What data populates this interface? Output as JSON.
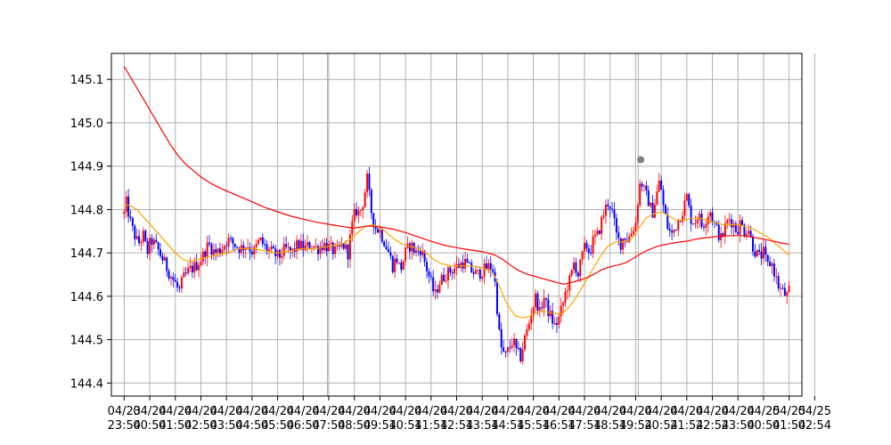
{
  "chart_data": {
    "type": "candlestick",
    "title": "",
    "xlabel": "",
    "ylabel": "",
    "grid": true,
    "legend": "none",
    "xlim": [
      -0.5,
      26.5
    ],
    "ylim": [
      144.37,
      145.16
    ],
    "y_ticks": [
      144.4,
      144.5,
      144.6,
      144.7,
      144.8,
      144.9,
      145.0,
      145.1
    ],
    "x_ticks": [
      {
        "x": 0,
        "line1": "04/23",
        "line2": "23:54"
      },
      {
        "x": 1,
        "line1": "04/24",
        "line2": "00:54"
      },
      {
        "x": 2,
        "line1": "04/24",
        "line2": "01:54"
      },
      {
        "x": 3,
        "line1": "04/24",
        "line2": "02:54"
      },
      {
        "x": 4,
        "line1": "04/24",
        "line2": "03:54"
      },
      {
        "x": 5,
        "line1": "04/24",
        "line2": "04:54"
      },
      {
        "x": 6,
        "line1": "04/24",
        "line2": "05:54"
      },
      {
        "x": 7,
        "line1": "04/24",
        "line2": "06:54"
      },
      {
        "x": 8,
        "line1": "04/24",
        "line2": "07:54"
      },
      {
        "x": 9,
        "line1": "04/24",
        "line2": "08:54"
      },
      {
        "x": 10,
        "line1": "04/24",
        "line2": "09:54"
      },
      {
        "x": 11,
        "line1": "04/24",
        "line2": "10:54"
      },
      {
        "x": 12,
        "line1": "04/24",
        "line2": "11:54"
      },
      {
        "x": 13,
        "line1": "04/24",
        "line2": "12:54"
      },
      {
        "x": 14,
        "line1": "04/24",
        "line2": "13:54"
      },
      {
        "x": 15,
        "line1": "04/24",
        "line2": "14:54"
      },
      {
        "x": 16,
        "line1": "04/24",
        "line2": "15:54"
      },
      {
        "x": 17,
        "line1": "04/24",
        "line2": "16:54"
      },
      {
        "x": 18,
        "line1": "04/24",
        "line2": "17:54"
      },
      {
        "x": 19,
        "line1": "04/24",
        "line2": "18:54"
      },
      {
        "x": 20,
        "line1": "04/24",
        "line2": "19:54"
      },
      {
        "x": 21,
        "line1": "04/24",
        "line2": "20:54"
      },
      {
        "x": 22,
        "line1": "04/24",
        "line2": "21:54"
      },
      {
        "x": 23,
        "line1": "04/24",
        "line2": "22:54"
      },
      {
        "x": 24,
        "line1": "04/24",
        "line2": "23:54"
      },
      {
        "x": 25,
        "line1": "04/25",
        "line2": "00:54"
      },
      {
        "x": 26,
        "line1": "04/25",
        "line2": "01:54"
      },
      {
        "x": 27,
        "line1": "04/25",
        "line2": "02:54"
      }
    ],
    "vertical_markers": [
      {
        "x": 7.95,
        "color": "#aaaaaa"
      },
      {
        "x": 20.1,
        "color": "#aaaaaa"
      }
    ],
    "marker_points": [
      {
        "x": 20.2,
        "y": 144.915,
        "color": "#808080"
      }
    ],
    "candle_colors": {
      "up": "#ff0000",
      "down": "#0000ff"
    },
    "price_path": [
      [
        0.0,
        144.79
      ],
      [
        0.1,
        144.82
      ],
      [
        0.2,
        144.78
      ],
      [
        0.35,
        144.75
      ],
      [
        0.55,
        144.72
      ],
      [
        0.75,
        144.74
      ],
      [
        0.9,
        144.7
      ],
      [
        1.05,
        144.73
      ],
      [
        1.3,
        144.71
      ],
      [
        1.55,
        144.68
      ],
      [
        1.8,
        144.65
      ],
      [
        2.0,
        144.63
      ],
      [
        2.15,
        144.61
      ],
      [
        2.3,
        144.64
      ],
      [
        2.55,
        144.66
      ],
      [
        2.8,
        144.67
      ],
      [
        3.05,
        144.69
      ],
      [
        3.3,
        144.72
      ],
      [
        3.55,
        144.7
      ],
      [
        3.8,
        144.71
      ],
      [
        4.05,
        144.73
      ],
      [
        4.3,
        144.72
      ],
      [
        4.55,
        144.71
      ],
      [
        4.8,
        144.72
      ],
      [
        5.05,
        144.7
      ],
      [
        5.3,
        144.73
      ],
      [
        5.55,
        144.71
      ],
      [
        5.8,
        144.7
      ],
      [
        6.05,
        144.69
      ],
      [
        6.3,
        144.71
      ],
      [
        6.55,
        144.7
      ],
      [
        6.8,
        144.72
      ],
      [
        7.05,
        144.71
      ],
      [
        7.3,
        144.72
      ],
      [
        7.55,
        144.71
      ],
      [
        7.8,
        144.72
      ],
      [
        8.05,
        144.71
      ],
      [
        8.3,
        144.7
      ],
      [
        8.55,
        144.72
      ],
      [
        8.75,
        144.7
      ],
      [
        8.9,
        144.76
      ],
      [
        9.05,
        144.8
      ],
      [
        9.2,
        144.79
      ],
      [
        9.35,
        144.82
      ],
      [
        9.5,
        144.87
      ],
      [
        9.65,
        144.8
      ],
      [
        9.8,
        144.76
      ],
      [
        10.0,
        144.75
      ],
      [
        10.15,
        144.73
      ],
      [
        10.35,
        144.7
      ],
      [
        10.5,
        144.67
      ],
      [
        10.65,
        144.69
      ],
      [
        10.8,
        144.66
      ],
      [
        11.0,
        144.7
      ],
      [
        11.2,
        144.72
      ],
      [
        11.4,
        144.7
      ],
      [
        11.6,
        144.71
      ],
      [
        11.75,
        144.68
      ],
      [
        11.85,
        144.66
      ],
      [
        12.0,
        144.63
      ],
      [
        12.15,
        144.6
      ],
      [
        12.3,
        144.63
      ],
      [
        12.55,
        144.65
      ],
      [
        12.8,
        144.66
      ],
      [
        13.05,
        144.67
      ],
      [
        13.3,
        144.68
      ],
      [
        13.55,
        144.66
      ],
      [
        13.8,
        144.65
      ],
      [
        14.05,
        144.66
      ],
      [
        14.3,
        144.67
      ],
      [
        14.45,
        144.66
      ],
      [
        14.55,
        144.6
      ],
      [
        14.65,
        144.52
      ],
      [
        14.75,
        144.48
      ],
      [
        14.9,
        144.46
      ],
      [
        15.05,
        144.48
      ],
      [
        15.2,
        144.5
      ],
      [
        15.35,
        144.47
      ],
      [
        15.5,
        144.46
      ],
      [
        15.65,
        144.5
      ],
      [
        15.8,
        144.53
      ],
      [
        15.95,
        144.57
      ],
      [
        16.1,
        144.6
      ],
      [
        16.25,
        144.56
      ],
      [
        16.4,
        144.6
      ],
      [
        16.55,
        144.57
      ],
      [
        16.7,
        144.55
      ],
      [
        16.85,
        144.53
      ],
      [
        17.0,
        144.55
      ],
      [
        17.15,
        144.58
      ],
      [
        17.3,
        144.62
      ],
      [
        17.45,
        144.64
      ],
      [
        17.6,
        144.68
      ],
      [
        17.75,
        144.65
      ],
      [
        17.9,
        144.69
      ],
      [
        18.05,
        144.72
      ],
      [
        18.2,
        144.7
      ],
      [
        18.35,
        144.73
      ],
      [
        18.5,
        144.74
      ],
      [
        18.65,
        144.77
      ],
      [
        18.8,
        144.8
      ],
      [
        18.95,
        144.82
      ],
      [
        19.1,
        144.79
      ],
      [
        19.25,
        144.74
      ],
      [
        19.4,
        144.72
      ],
      [
        19.55,
        144.74
      ],
      [
        19.7,
        144.73
      ],
      [
        19.85,
        144.75
      ],
      [
        20.0,
        144.77
      ],
      [
        20.1,
        144.83
      ],
      [
        20.2,
        144.87
      ],
      [
        20.35,
        144.84
      ],
      [
        20.5,
        144.82
      ],
      [
        20.65,
        144.79
      ],
      [
        20.8,
        144.83
      ],
      [
        20.95,
        144.87
      ],
      [
        21.1,
        144.8
      ],
      [
        21.25,
        144.76
      ],
      [
        21.4,
        144.74
      ],
      [
        21.55,
        144.76
      ],
      [
        21.7,
        144.78
      ],
      [
        21.85,
        144.8
      ],
      [
        22.0,
        144.83
      ],
      [
        22.15,
        144.78
      ],
      [
        22.3,
        144.77
      ],
      [
        22.45,
        144.79
      ],
      [
        22.6,
        144.76
      ],
      [
        22.75,
        144.78
      ],
      [
        22.9,
        144.8
      ],
      [
        23.05,
        144.77
      ],
      [
        23.2,
        144.75
      ],
      [
        23.35,
        144.73
      ],
      [
        23.5,
        144.76
      ],
      [
        23.65,
        144.78
      ],
      [
        23.8,
        144.77
      ],
      [
        23.95,
        144.75
      ],
      [
        24.1,
        144.77
      ],
      [
        24.25,
        144.75
      ],
      [
        24.4,
        144.76
      ],
      [
        24.55,
        144.72
      ],
      [
        24.7,
        144.7
      ],
      [
        24.85,
        144.69
      ],
      [
        25.0,
        144.7
      ],
      [
        25.15,
        144.67
      ],
      [
        25.3,
        144.68
      ],
      [
        25.45,
        144.65
      ],
      [
        25.6,
        144.62
      ],
      [
        25.75,
        144.61
      ],
      [
        25.9,
        144.6
      ],
      [
        26.0,
        144.61
      ]
    ],
    "moving_averages": [
      {
        "color": "#ffa500",
        "points": [
          [
            0.0,
            144.81
          ],
          [
            0.2,
            144.81
          ],
          [
            0.5,
            144.8
          ],
          [
            0.8,
            144.78
          ],
          [
            1.1,
            144.76
          ],
          [
            1.4,
            144.74
          ],
          [
            1.7,
            144.72
          ],
          [
            2.0,
            144.7
          ],
          [
            2.3,
            144.685
          ],
          [
            2.6,
            144.68
          ],
          [
            2.9,
            144.685
          ],
          [
            3.2,
            144.69
          ],
          [
            3.6,
            144.695
          ],
          [
            4.0,
            144.7
          ],
          [
            4.5,
            144.71
          ],
          [
            5.0,
            144.71
          ],
          [
            5.5,
            144.705
          ],
          [
            6.0,
            144.7
          ],
          [
            6.5,
            144.705
          ],
          [
            7.0,
            144.71
          ],
          [
            7.5,
            144.71
          ],
          [
            8.0,
            144.715
          ],
          [
            8.5,
            144.72
          ],
          [
            8.8,
            144.73
          ],
          [
            9.1,
            144.745
          ],
          [
            9.4,
            144.76
          ],
          [
            9.7,
            144.765
          ],
          [
            10.0,
            144.76
          ],
          [
            10.3,
            144.745
          ],
          [
            10.6,
            144.73
          ],
          [
            10.9,
            144.72
          ],
          [
            11.2,
            144.715
          ],
          [
            11.5,
            144.71
          ],
          [
            11.8,
            144.7
          ],
          [
            12.1,
            144.685
          ],
          [
            12.4,
            144.675
          ],
          [
            12.8,
            144.67
          ],
          [
            13.2,
            144.67
          ],
          [
            13.6,
            144.67
          ],
          [
            14.0,
            144.665
          ],
          [
            14.3,
            144.66
          ],
          [
            14.5,
            144.645
          ],
          [
            14.7,
            144.62
          ],
          [
            14.9,
            144.59
          ],
          [
            15.1,
            144.57
          ],
          [
            15.3,
            144.555
          ],
          [
            15.6,
            144.55
          ],
          [
            15.9,
            144.555
          ],
          [
            16.2,
            144.565
          ],
          [
            16.5,
            144.565
          ],
          [
            16.8,
            144.56
          ],
          [
            17.1,
            144.56
          ],
          [
            17.4,
            144.575
          ],
          [
            17.7,
            144.6
          ],
          [
            18.0,
            144.63
          ],
          [
            18.3,
            144.66
          ],
          [
            18.6,
            144.69
          ],
          [
            18.9,
            144.715
          ],
          [
            19.2,
            144.725
          ],
          [
            19.5,
            144.725
          ],
          [
            19.8,
            144.73
          ],
          [
            20.1,
            144.755
          ],
          [
            20.4,
            144.78
          ],
          [
            20.7,
            144.79
          ],
          [
            21.0,
            144.795
          ],
          [
            21.3,
            144.785
          ],
          [
            21.6,
            144.775
          ],
          [
            21.9,
            144.775
          ],
          [
            22.2,
            144.78
          ],
          [
            22.5,
            144.78
          ],
          [
            22.8,
            144.775
          ],
          [
            23.1,
            144.77
          ],
          [
            23.4,
            144.765
          ],
          [
            23.7,
            144.765
          ],
          [
            24.0,
            144.765
          ],
          [
            24.3,
            144.76
          ],
          [
            24.6,
            144.755
          ],
          [
            24.9,
            144.745
          ],
          [
            25.2,
            144.735
          ],
          [
            25.5,
            144.72
          ],
          [
            25.8,
            144.705
          ],
          [
            26.0,
            144.695
          ]
        ]
      },
      {
        "color": "#ff0000",
        "points": [
          [
            0.0,
            145.13
          ],
          [
            0.3,
            145.1
          ],
          [
            0.6,
            145.07
          ],
          [
            0.9,
            145.04
          ],
          [
            1.2,
            145.01
          ],
          [
            1.5,
            144.98
          ],
          [
            1.8,
            144.95
          ],
          [
            2.1,
            144.925
          ],
          [
            2.4,
            144.905
          ],
          [
            2.7,
            144.89
          ],
          [
            3.0,
            144.875
          ],
          [
            3.4,
            144.86
          ],
          [
            3.8,
            144.848
          ],
          [
            4.2,
            144.838
          ],
          [
            4.6,
            144.828
          ],
          [
            5.0,
            144.818
          ],
          [
            5.5,
            144.805
          ],
          [
            6.0,
            144.795
          ],
          [
            6.5,
            144.785
          ],
          [
            7.0,
            144.778
          ],
          [
            7.5,
            144.771
          ],
          [
            8.0,
            144.766
          ],
          [
            8.5,
            144.761
          ],
          [
            9.0,
            144.757
          ],
          [
            9.5,
            144.762
          ],
          [
            10.0,
            144.76
          ],
          [
            10.5,
            144.755
          ],
          [
            11.0,
            144.747
          ],
          [
            11.5,
            144.737
          ],
          [
            12.0,
            144.727
          ],
          [
            12.5,
            144.718
          ],
          [
            13.0,
            144.712
          ],
          [
            13.5,
            144.707
          ],
          [
            14.0,
            144.703
          ],
          [
            14.5,
            144.695
          ],
          [
            14.8,
            144.685
          ],
          [
            15.1,
            144.672
          ],
          [
            15.4,
            144.66
          ],
          [
            15.7,
            144.652
          ],
          [
            16.0,
            144.647
          ],
          [
            16.3,
            144.642
          ],
          [
            16.6,
            144.637
          ],
          [
            16.9,
            144.632
          ],
          [
            17.2,
            144.628
          ],
          [
            17.5,
            144.632
          ],
          [
            17.8,
            144.637
          ],
          [
            18.1,
            144.643
          ],
          [
            18.4,
            144.652
          ],
          [
            18.7,
            144.662
          ],
          [
            19.0,
            144.668
          ],
          [
            19.3,
            144.672
          ],
          [
            19.6,
            144.677
          ],
          [
            19.9,
            144.687
          ],
          [
            20.2,
            144.698
          ],
          [
            20.5,
            144.707
          ],
          [
            20.8,
            144.714
          ],
          [
            21.1,
            144.719
          ],
          [
            21.4,
            144.722
          ],
          [
            21.7,
            144.725
          ],
          [
            22.0,
            144.727
          ],
          [
            22.3,
            144.731
          ],
          [
            22.6,
            144.734
          ],
          [
            22.9,
            144.736
          ],
          [
            23.2,
            144.738
          ],
          [
            23.5,
            144.739
          ],
          [
            23.8,
            144.74
          ],
          [
            24.1,
            144.74
          ],
          [
            24.4,
            144.738
          ],
          [
            24.7,
            144.735
          ],
          [
            25.0,
            144.732
          ],
          [
            25.3,
            144.728
          ],
          [
            25.6,
            144.724
          ],
          [
            26.0,
            144.72
          ]
        ]
      }
    ]
  }
}
